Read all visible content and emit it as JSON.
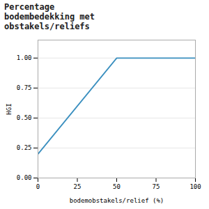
{
  "chart_data": {
    "type": "line",
    "title": "Percentage\nbodembedekking met\nobstakels/reliefs",
    "xlabel": "bodemobstakels/relief (%)",
    "ylabel": "HGI",
    "x": [
      0,
      50,
      100
    ],
    "values": [
      0.2,
      1.0,
      1.0
    ],
    "color": "#3a8fbf",
    "xlim": [
      0,
      100
    ],
    "ylim": [
      0.0,
      1.15
    ],
    "xticks": [
      0,
      25,
      50,
      75,
      100
    ],
    "yticks": [
      {
        "value": 0.0,
        "label": "0.00"
      },
      {
        "value": 0.25,
        "label": "0.25"
      },
      {
        "value": 0.5,
        "label": "0.50"
      },
      {
        "value": 0.75,
        "label": "0.75"
      },
      {
        "value": 1.0,
        "label": "1.00"
      }
    ],
    "grid": "y"
  }
}
